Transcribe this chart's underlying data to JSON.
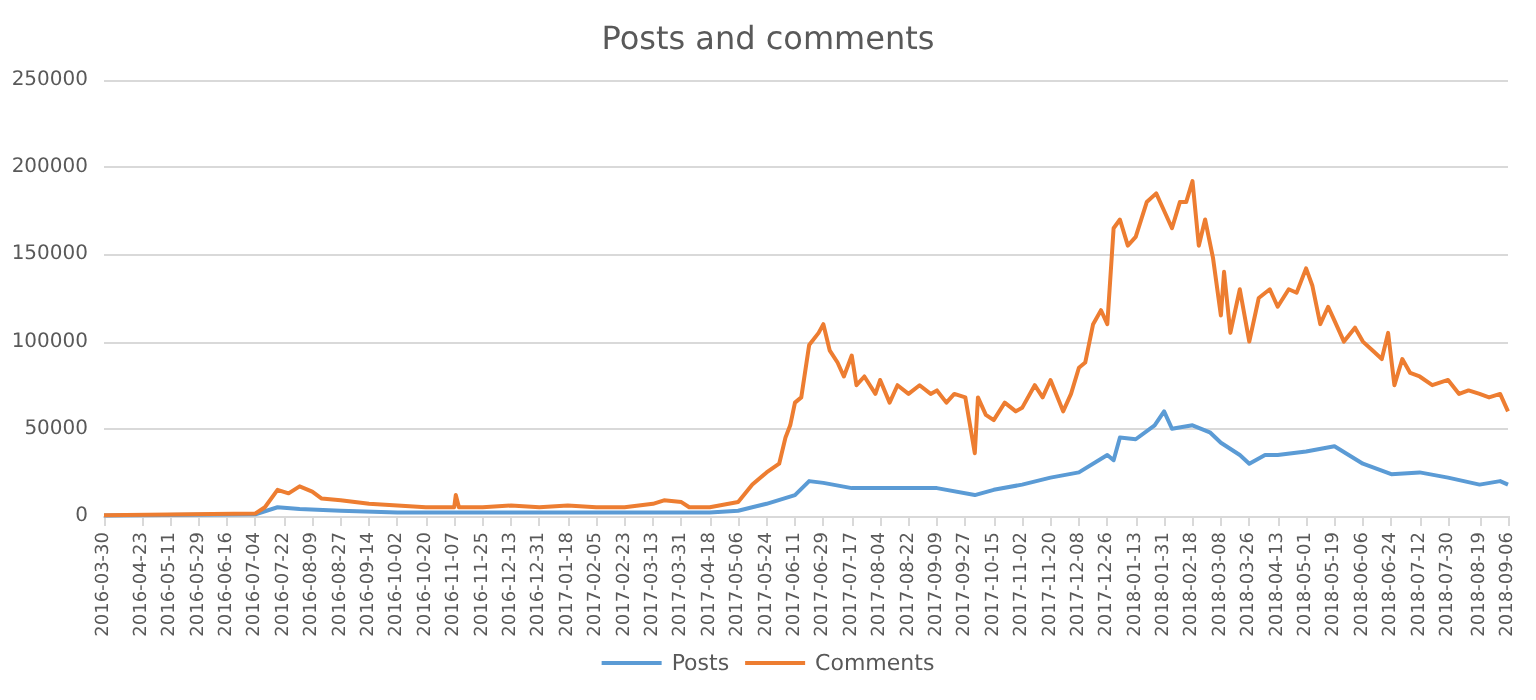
{
  "chart_data": {
    "type": "line",
    "title": "Posts and comments",
    "xlim": [
      "2016-03-30",
      "2018-09-06"
    ],
    "xticks": [
      "2016-03-30",
      "2016-04-23",
      "2016-05-11",
      "2016-05-29",
      "2016-06-16",
      "2016-07-04",
      "2016-07-22",
      "2016-08-09",
      "2016-08-27",
      "2016-09-14",
      "2016-10-02",
      "2016-10-20",
      "2016-11-07",
      "2016-11-25",
      "2016-12-13",
      "2016-12-31",
      "2017-01-18",
      "2017-02-05",
      "2017-02-23",
      "2017-03-13",
      "2017-03-31",
      "2017-04-18",
      "2017-05-06",
      "2017-05-24",
      "2017-06-11",
      "2017-06-29",
      "2017-07-17",
      "2017-08-04",
      "2017-08-22",
      "2017-09-09",
      "2017-09-27",
      "2017-10-15",
      "2017-11-02",
      "2017-11-20",
      "2017-12-08",
      "2017-12-26",
      "2018-01-13",
      "2018-01-31",
      "2018-02-18",
      "2018-03-08",
      "2018-03-26",
      "2018-04-13",
      "2018-05-01",
      "2018-05-19",
      "2018-06-06",
      "2018-06-24",
      "2018-07-12",
      "2018-07-30",
      "2018-08-19",
      "2018-09-06"
    ],
    "ylim": [
      0,
      250000
    ],
    "yticks": [
      0,
      50000,
      100000,
      150000,
      200000,
      250000
    ],
    "grid": "y",
    "legend": "bottom",
    "marker": "none",
    "line_style": "solid",
    "series": [
      {
        "name": "Posts",
        "color": "#5b9bd5",
        "x": [
          "2016-03-30",
          "2016-07-04",
          "2016-07-18",
          "2016-08-01",
          "2016-08-27",
          "2016-10-02",
          "2017-04-18",
          "2017-05-06",
          "2017-05-24",
          "2017-06-11",
          "2017-06-20",
          "2017-06-29",
          "2017-07-17",
          "2017-08-04",
          "2017-09-09",
          "2017-10-03",
          "2017-10-15",
          "2017-11-02",
          "2017-11-20",
          "2017-12-08",
          "2017-12-26",
          "2017-12-30",
          "2018-01-03",
          "2018-01-13",
          "2018-01-25",
          "2018-01-31",
          "2018-02-05",
          "2018-02-18",
          "2018-03-01",
          "2018-03-08",
          "2018-03-20",
          "2018-03-26",
          "2018-04-05",
          "2018-04-13",
          "2018-05-01",
          "2018-05-19",
          "2018-06-06",
          "2018-06-24",
          "2018-07-12",
          "2018-07-30",
          "2018-08-19",
          "2018-09-01",
          "2018-09-06"
        ],
        "values": [
          300,
          1000,
          5000,
          4000,
          3000,
          2000,
          2000,
          3000,
          7000,
          12000,
          20000,
          19000,
          16000,
          16000,
          16000,
          12000,
          15000,
          18000,
          22000,
          25000,
          35000,
          32000,
          45000,
          44000,
          52000,
          60000,
          50000,
          52000,
          48000,
          42000,
          35000,
          30000,
          35000,
          35000,
          37000,
          40000,
          30000,
          24000,
          25000,
          22000,
          18000,
          20000,
          18000
        ]
      },
      {
        "name": "Comments",
        "color": "#ed7d31",
        "x": [
          "2016-03-30",
          "2016-07-04",
          "2016-07-10",
          "2016-07-18",
          "2016-07-25",
          "2016-08-01",
          "2016-08-09",
          "2016-08-15",
          "2016-08-27",
          "2016-09-14",
          "2016-10-02",
          "2016-10-20",
          "2016-11-07",
          "2016-11-08",
          "2016-11-10",
          "2016-11-25",
          "2016-12-13",
          "2016-12-31",
          "2017-01-18",
          "2017-02-05",
          "2017-02-23",
          "2017-03-13",
          "2017-03-20",
          "2017-03-31",
          "2017-04-05",
          "2017-04-18",
          "2017-05-06",
          "2017-05-15",
          "2017-05-24",
          "2017-06-01",
          "2017-06-05",
          "2017-06-08",
          "2017-06-11",
          "2017-06-15",
          "2017-06-20",
          "2017-06-26",
          "2017-06-29",
          "2017-07-03",
          "2017-07-08",
          "2017-07-12",
          "2017-07-17",
          "2017-07-20",
          "2017-07-25",
          "2017-08-01",
          "2017-08-04",
          "2017-08-10",
          "2017-08-15",
          "2017-08-22",
          "2017-08-29",
          "2017-09-05",
          "2017-09-09",
          "2017-09-15",
          "2017-09-20",
          "2017-09-27",
          "2017-10-03",
          "2017-10-05",
          "2017-10-10",
          "2017-10-15",
          "2017-10-22",
          "2017-10-29",
          "2017-11-02",
          "2017-11-10",
          "2017-11-15",
          "2017-11-20",
          "2017-11-28",
          "2017-12-03",
          "2017-12-08",
          "2017-12-12",
          "2017-12-17",
          "2017-12-22",
          "2017-12-26",
          "2017-12-30",
          "2018-01-03",
          "2018-01-08",
          "2018-01-13",
          "2018-01-20",
          "2018-01-26",
          "2018-01-31",
          "2018-02-05",
          "2018-02-10",
          "2018-02-14",
          "2018-02-18",
          "2018-02-22",
          "2018-02-26",
          "2018-03-03",
          "2018-03-08",
          "2018-03-10",
          "2018-03-14",
          "2018-03-20",
          "2018-03-26",
          "2018-04-01",
          "2018-04-08",
          "2018-04-13",
          "2018-04-20",
          "2018-04-25",
          "2018-05-01",
          "2018-05-05",
          "2018-05-10",
          "2018-05-15",
          "2018-05-19",
          "2018-05-25",
          "2018-06-01",
          "2018-06-06",
          "2018-06-12",
          "2018-06-18",
          "2018-06-22",
          "2018-06-26",
          "2018-07-01",
          "2018-07-06",
          "2018-07-12",
          "2018-07-20",
          "2018-07-30",
          "2018-08-06",
          "2018-08-12",
          "2018-08-19",
          "2018-08-25",
          "2018-09-01",
          "2018-09-06"
        ],
        "values": [
          500,
          1500,
          5000,
          15000,
          13000,
          17000,
          14000,
          10000,
          9000,
          7000,
          6000,
          5000,
          5000,
          12000,
          5000,
          5000,
          6000,
          5000,
          6000,
          5000,
          5000,
          7000,
          9000,
          8000,
          5000,
          5000,
          8000,
          18000,
          25000,
          30000,
          45000,
          52000,
          65000,
          68000,
          98000,
          105000,
          110000,
          95000,
          88000,
          80000,
          92000,
          75000,
          80000,
          70000,
          78000,
          65000,
          75000,
          70000,
          75000,
          70000,
          72000,
          65000,
          70000,
          68000,
          36000,
          68000,
          58000,
          55000,
          65000,
          60000,
          62000,
          75000,
          68000,
          78000,
          60000,
          70000,
          85000,
          88000,
          110000,
          118000,
          110000,
          165000,
          170000,
          155000,
          160000,
          180000,
          185000,
          175000,
          165000,
          180000,
          180000,
          192000,
          155000,
          170000,
          148000,
          115000,
          140000,
          105000,
          130000,
          100000,
          125000,
          130000,
          120000,
          130000,
          128000,
          142000,
          132000,
          110000,
          120000,
          112000,
          100000,
          108000,
          100000,
          95000,
          90000,
          105000,
          75000,
          90000,
          82000,
          80000,
          75000,
          78000,
          70000,
          72000,
          70000,
          68000,
          70000,
          60000
        ]
      }
    ]
  }
}
